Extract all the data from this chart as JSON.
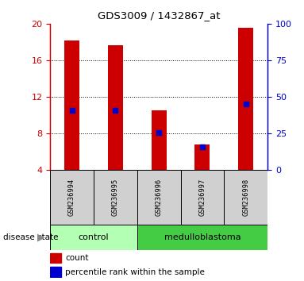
{
  "title": "GDS3009 / 1432867_at",
  "samples": [
    "GSM236994",
    "GSM236995",
    "GSM236996",
    "GSM236997",
    "GSM236998"
  ],
  "bar_bottoms": [
    4,
    4,
    4,
    4,
    4
  ],
  "bar_tops": [
    18.2,
    17.7,
    10.5,
    6.8,
    19.6
  ],
  "percentile_values": [
    10.5,
    10.5,
    8.1,
    6.5,
    11.2
  ],
  "bar_color": "#cc0000",
  "pct_color": "#0000cc",
  "ylim_left": [
    4,
    20
  ],
  "yticks_left": [
    4,
    8,
    12,
    16,
    20
  ],
  "ylim_right": [
    0,
    100
  ],
  "yticks_right": [
    0,
    25,
    50,
    75,
    100
  ],
  "disease_groups": [
    {
      "label": "control",
      "indices": [
        0,
        1
      ],
      "color": "#b3ffb3"
    },
    {
      "label": "medulloblastoma",
      "indices": [
        2,
        3,
        4
      ],
      "color": "#44cc44"
    }
  ],
  "disease_label": "disease state",
  "legend_count": "count",
  "legend_pct": "percentile rank within the sample",
  "bar_width": 0.35,
  "sample_box_color": "#d0d0d0",
  "bg_color": "#ffffff"
}
